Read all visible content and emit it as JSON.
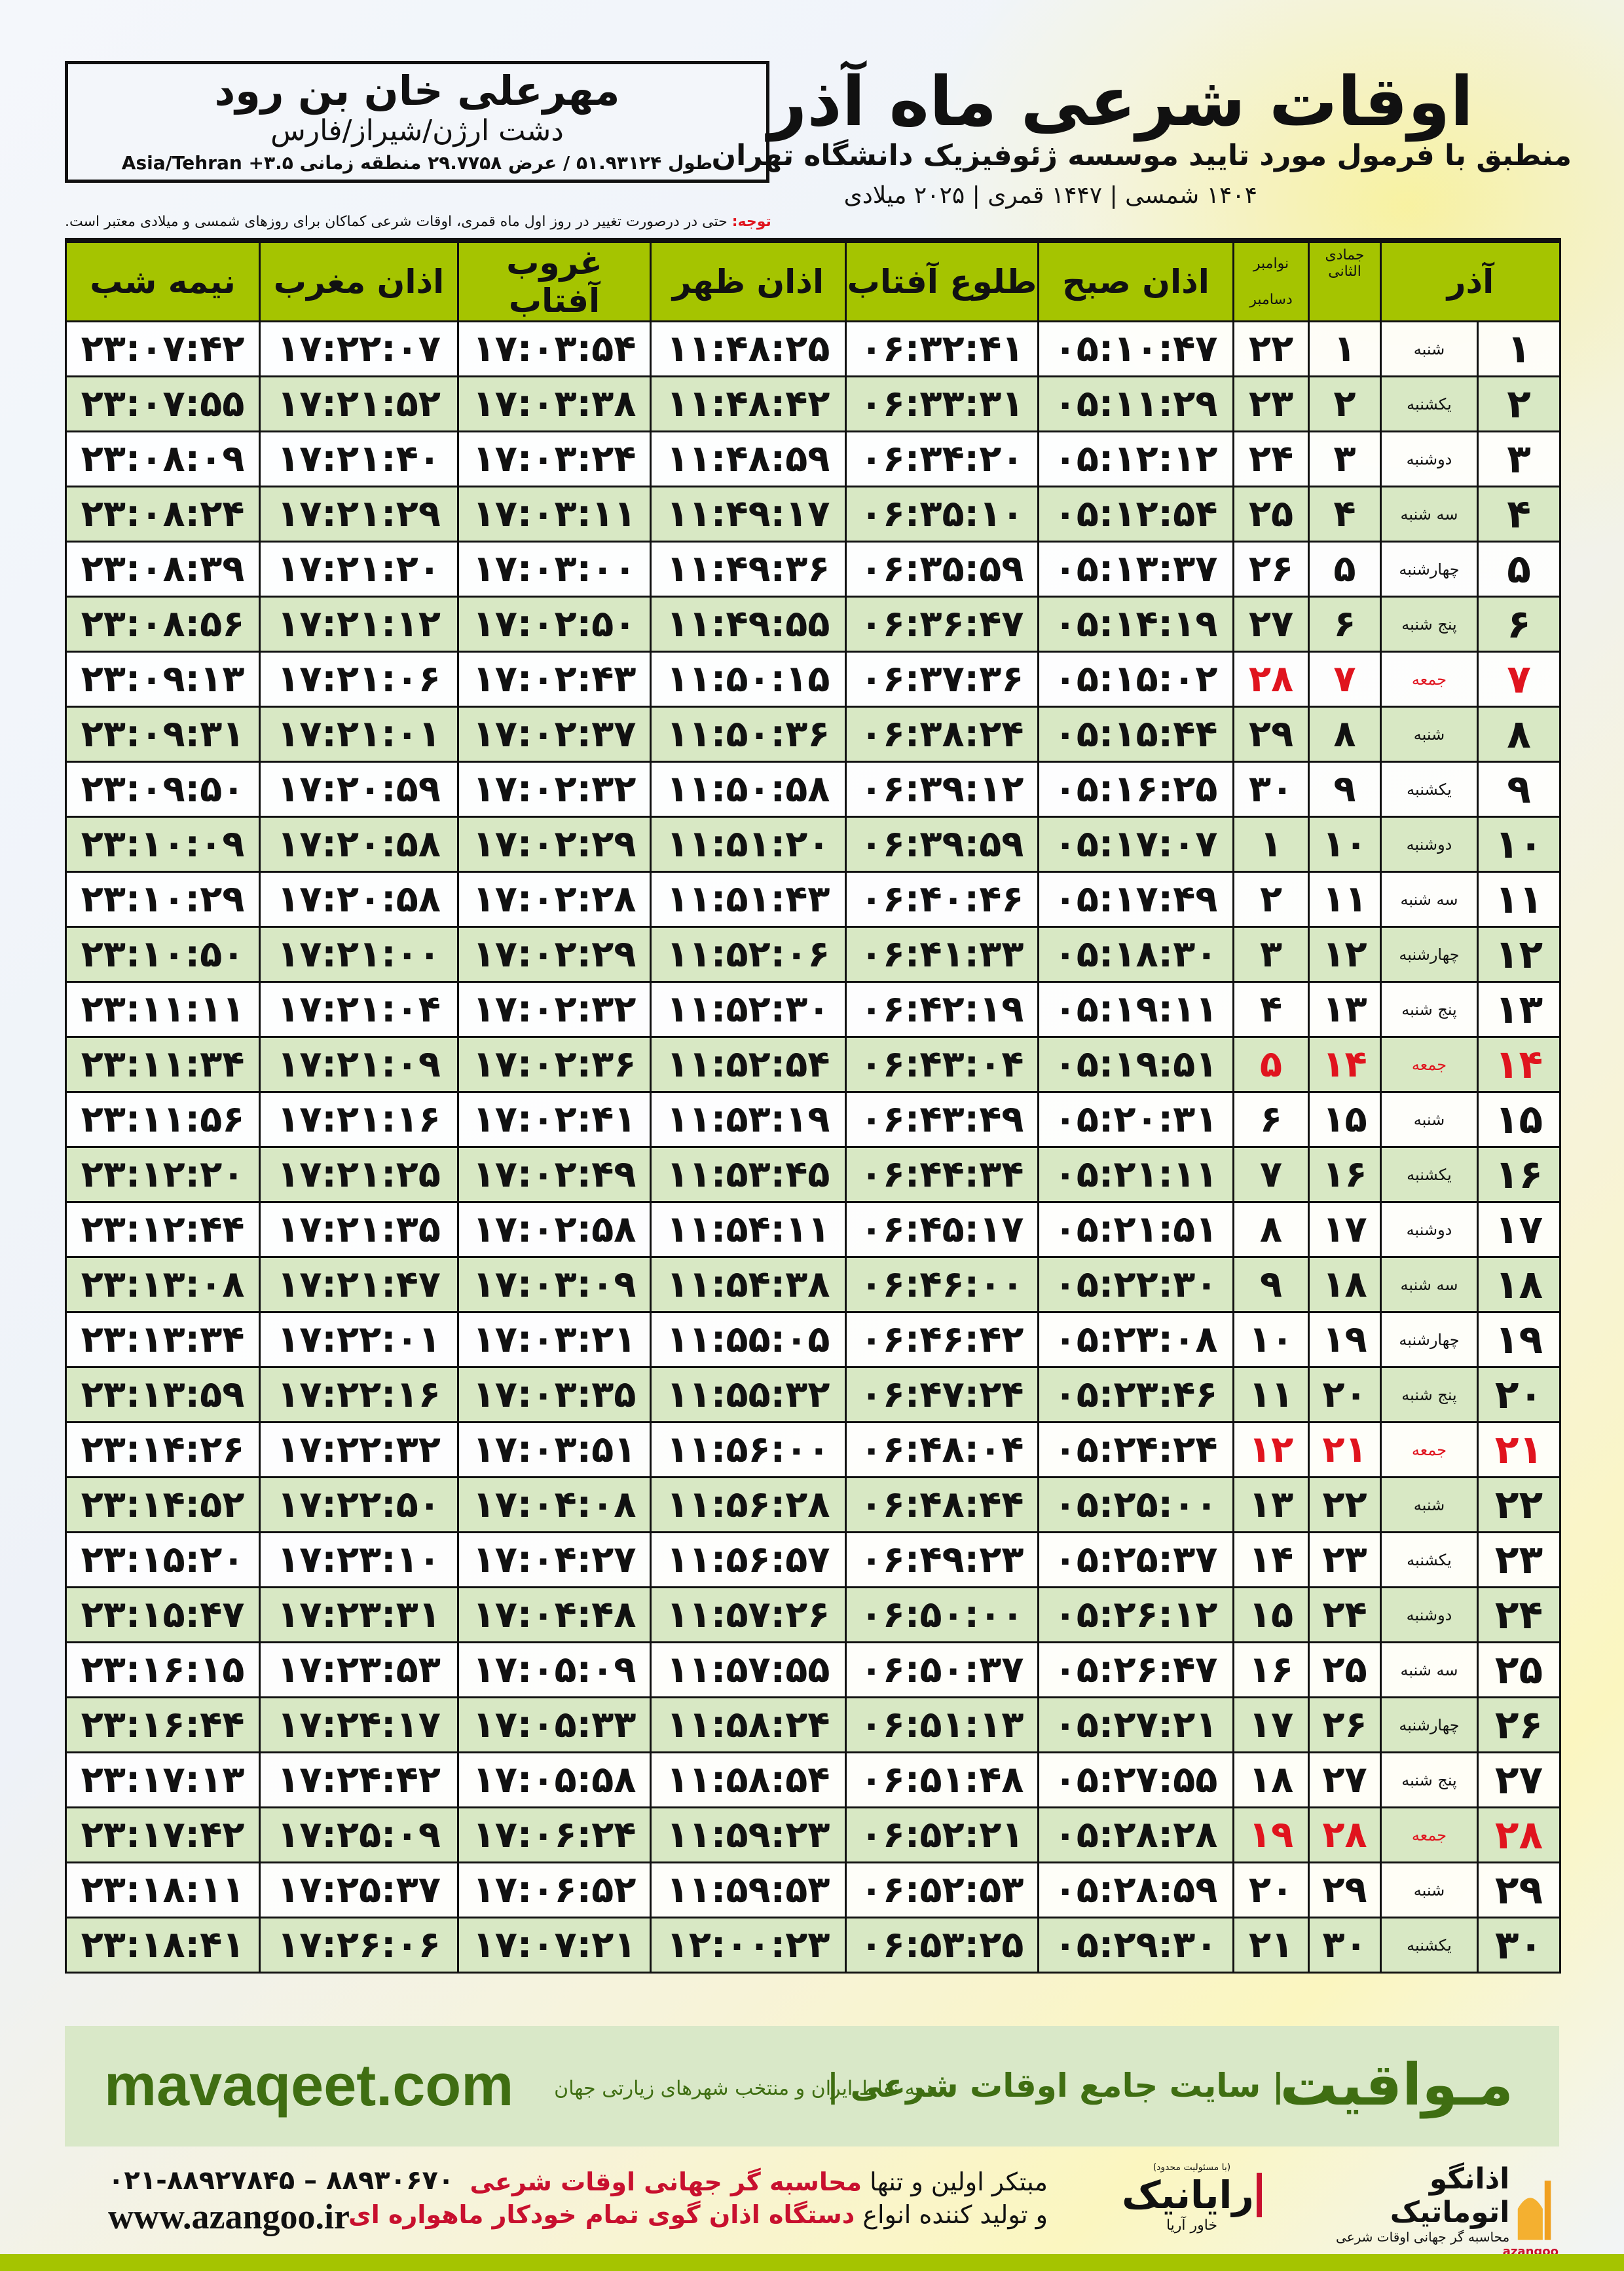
{
  "location": {
    "name": "مهرعلی خان بن رود",
    "region": "دشت ارژن/شیراز/فارس",
    "coords": "طول ۵۱.۹۳۱۲۴ / عرض ۲۹.۷۷۵۸ منطقه زمانی ۳.۵+ Asia/Tehran"
  },
  "header": {
    "title": "اوقات شرعی ماه آذر",
    "subtitle": "منطبق با فرمول مورد تایید موسسه ژئوفیزیک دانشگاه تهران",
    "dates": "۱۴۰۴ شمسی | ۱۴۴۷ قمری | ۲۰۲۵ میلادی"
  },
  "note": {
    "label": "توجه:",
    "text": " حتی در درصورت تغییر در روز اول ماه قمری، اوقات شرعی کماکان برای روزهای شمسی و میلادی معتبر است."
  },
  "colors": {
    "header_green": "#a5c400",
    "row_green": "#d8e8c4",
    "holiday_red": "#e0141e",
    "brand_green": "#3f6e12"
  },
  "table": {
    "columns": {
      "azar": "آذر",
      "qamari": "جمادی الثانی",
      "gregorian_top": "نوامبر",
      "gregorian_bottom": "دسامبر",
      "fajr": "اذان صبح",
      "sunrise": "طلوع آفتاب",
      "dhuhr": "اذان ظهر",
      "sunset": "غروب آفتاب",
      "maghrib": "اذان مغرب",
      "midnight": "نیمه شب"
    },
    "rows": [
      {
        "azar": "۱",
        "weekday": "شنبه",
        "qamari": "۱",
        "gregorian": "۲۲",
        "fajr": "۰۵:۱۰:۴۷",
        "sunrise": "۰۶:۳۲:۴۱",
        "dhuhr": "۱۱:۴۸:۲۵",
        "sunset": "۱۷:۰۳:۵۴",
        "maghrib": "۱۷:۲۲:۰۷",
        "midnight": "۲۳:۰۷:۴۲",
        "holiday": false
      },
      {
        "azar": "۲",
        "weekday": "یکشنبه",
        "qamari": "۲",
        "gregorian": "۲۳",
        "fajr": "۰۵:۱۱:۲۹",
        "sunrise": "۰۶:۳۳:۳۱",
        "dhuhr": "۱۱:۴۸:۴۲",
        "sunset": "۱۷:۰۳:۳۸",
        "maghrib": "۱۷:۲۱:۵۲",
        "midnight": "۲۳:۰۷:۵۵",
        "holiday": false
      },
      {
        "azar": "۳",
        "weekday": "دوشنبه",
        "qamari": "۳",
        "gregorian": "۲۴",
        "fajr": "۰۵:۱۲:۱۲",
        "sunrise": "۰۶:۳۴:۲۰",
        "dhuhr": "۱۱:۴۸:۵۹",
        "sunset": "۱۷:۰۳:۲۴",
        "maghrib": "۱۷:۲۱:۴۰",
        "midnight": "۲۳:۰۸:۰۹",
        "holiday": false
      },
      {
        "azar": "۴",
        "weekday": "سه شنبه",
        "qamari": "۴",
        "gregorian": "۲۵",
        "fajr": "۰۵:۱۲:۵۴",
        "sunrise": "۰۶:۳۵:۱۰",
        "dhuhr": "۱۱:۴۹:۱۷",
        "sunset": "۱۷:۰۳:۱۱",
        "maghrib": "۱۷:۲۱:۲۹",
        "midnight": "۲۳:۰۸:۲۴",
        "holiday": false
      },
      {
        "azar": "۵",
        "weekday": "چهارشنبه",
        "qamari": "۵",
        "gregorian": "۲۶",
        "fajr": "۰۵:۱۳:۳۷",
        "sunrise": "۰۶:۳۵:۵۹",
        "dhuhr": "۱۱:۴۹:۳۶",
        "sunset": "۱۷:۰۳:۰۰",
        "maghrib": "۱۷:۲۱:۲۰",
        "midnight": "۲۳:۰۸:۳۹",
        "holiday": false
      },
      {
        "azar": "۶",
        "weekday": "پنج شنبه",
        "qamari": "۶",
        "gregorian": "۲۷",
        "fajr": "۰۵:۱۴:۱۹",
        "sunrise": "۰۶:۳۶:۴۷",
        "dhuhr": "۱۱:۴۹:۵۵",
        "sunset": "۱۷:۰۲:۵۰",
        "maghrib": "۱۷:۲۱:۱۲",
        "midnight": "۲۳:۰۸:۵۶",
        "holiday": false
      },
      {
        "azar": "۷",
        "weekday": "جمعه",
        "qamari": "۷",
        "gregorian": "۲۸",
        "fajr": "۰۵:۱۵:۰۲",
        "sunrise": "۰۶:۳۷:۳۶",
        "dhuhr": "۱۱:۵۰:۱۵",
        "sunset": "۱۷:۰۲:۴۳",
        "maghrib": "۱۷:۲۱:۰۶",
        "midnight": "۲۳:۰۹:۱۳",
        "holiday": true
      },
      {
        "azar": "۸",
        "weekday": "شنبه",
        "qamari": "۸",
        "gregorian": "۲۹",
        "fajr": "۰۵:۱۵:۴۴",
        "sunrise": "۰۶:۳۸:۲۴",
        "dhuhr": "۱۱:۵۰:۳۶",
        "sunset": "۱۷:۰۲:۳۷",
        "maghrib": "۱۷:۲۱:۰۱",
        "midnight": "۲۳:۰۹:۳۱",
        "holiday": false
      },
      {
        "azar": "۹",
        "weekday": "یکشنبه",
        "qamari": "۹",
        "gregorian": "۳۰",
        "fajr": "۰۵:۱۶:۲۵",
        "sunrise": "۰۶:۳۹:۱۲",
        "dhuhr": "۱۱:۵۰:۵۸",
        "sunset": "۱۷:۰۲:۳۲",
        "maghrib": "۱۷:۲۰:۵۹",
        "midnight": "۲۳:۰۹:۵۰",
        "holiday": false
      },
      {
        "azar": "۱۰",
        "weekday": "دوشنبه",
        "qamari": "۱۰",
        "gregorian": "۱",
        "fajr": "۰۵:۱۷:۰۷",
        "sunrise": "۰۶:۳۹:۵۹",
        "dhuhr": "۱۱:۵۱:۲۰",
        "sunset": "۱۷:۰۲:۲۹",
        "maghrib": "۱۷:۲۰:۵۸",
        "midnight": "۲۳:۱۰:۰۹",
        "holiday": false
      },
      {
        "azar": "۱۱",
        "weekday": "سه شنبه",
        "qamari": "۱۱",
        "gregorian": "۲",
        "fajr": "۰۵:۱۷:۴۹",
        "sunrise": "۰۶:۴۰:۴۶",
        "dhuhr": "۱۱:۵۱:۴۳",
        "sunset": "۱۷:۰۲:۲۸",
        "maghrib": "۱۷:۲۰:۵۸",
        "midnight": "۲۳:۱۰:۲۹",
        "holiday": false
      },
      {
        "azar": "۱۲",
        "weekday": "چهارشنبه",
        "qamari": "۱۲",
        "gregorian": "۳",
        "fajr": "۰۵:۱۸:۳۰",
        "sunrise": "۰۶:۴۱:۳۳",
        "dhuhr": "۱۱:۵۲:۰۶",
        "sunset": "۱۷:۰۲:۲۹",
        "maghrib": "۱۷:۲۱:۰۰",
        "midnight": "۲۳:۱۰:۵۰",
        "holiday": false
      },
      {
        "azar": "۱۳",
        "weekday": "پنج شنبه",
        "qamari": "۱۳",
        "gregorian": "۴",
        "fajr": "۰۵:۱۹:۱۱",
        "sunrise": "۰۶:۴۲:۱۹",
        "dhuhr": "۱۱:۵۲:۳۰",
        "sunset": "۱۷:۰۲:۳۲",
        "maghrib": "۱۷:۲۱:۰۴",
        "midnight": "۲۳:۱۱:۱۱",
        "holiday": false
      },
      {
        "azar": "۱۴",
        "weekday": "جمعه",
        "qamari": "۱۴",
        "gregorian": "۵",
        "fajr": "۰۵:۱۹:۵۱",
        "sunrise": "۰۶:۴۳:۰۴",
        "dhuhr": "۱۱:۵۲:۵۴",
        "sunset": "۱۷:۰۲:۳۶",
        "maghrib": "۱۷:۲۱:۰۹",
        "midnight": "۲۳:۱۱:۳۴",
        "holiday": true
      },
      {
        "azar": "۱۵",
        "weekday": "شنبه",
        "qamari": "۱۵",
        "gregorian": "۶",
        "fajr": "۰۵:۲۰:۳۱",
        "sunrise": "۰۶:۴۳:۴۹",
        "dhuhr": "۱۱:۵۳:۱۹",
        "sunset": "۱۷:۰۲:۴۱",
        "maghrib": "۱۷:۲۱:۱۶",
        "midnight": "۲۳:۱۱:۵۶",
        "holiday": false
      },
      {
        "azar": "۱۶",
        "weekday": "یکشنبه",
        "qamari": "۱۶",
        "gregorian": "۷",
        "fajr": "۰۵:۲۱:۱۱",
        "sunrise": "۰۶:۴۴:۳۴",
        "dhuhr": "۱۱:۵۳:۴۵",
        "sunset": "۱۷:۰۲:۴۹",
        "maghrib": "۱۷:۲۱:۲۵",
        "midnight": "۲۳:۱۲:۲۰",
        "holiday": false
      },
      {
        "azar": "۱۷",
        "weekday": "دوشنبه",
        "qamari": "۱۷",
        "gregorian": "۸",
        "fajr": "۰۵:۲۱:۵۱",
        "sunrise": "۰۶:۴۵:۱۷",
        "dhuhr": "۱۱:۵۴:۱۱",
        "sunset": "۱۷:۰۲:۵۸",
        "maghrib": "۱۷:۲۱:۳۵",
        "midnight": "۲۳:۱۲:۴۴",
        "holiday": false
      },
      {
        "azar": "۱۸",
        "weekday": "سه شنبه",
        "qamari": "۱۸",
        "gregorian": "۹",
        "fajr": "۰۵:۲۲:۳۰",
        "sunrise": "۰۶:۴۶:۰۰",
        "dhuhr": "۱۱:۵۴:۳۸",
        "sunset": "۱۷:۰۳:۰۹",
        "maghrib": "۱۷:۲۱:۴۷",
        "midnight": "۲۳:۱۳:۰۸",
        "holiday": false
      },
      {
        "azar": "۱۹",
        "weekday": "چهارشنبه",
        "qamari": "۱۹",
        "gregorian": "۱۰",
        "fajr": "۰۵:۲۳:۰۸",
        "sunrise": "۰۶:۴۶:۴۲",
        "dhuhr": "۱۱:۵۵:۰۵",
        "sunset": "۱۷:۰۳:۲۱",
        "maghrib": "۱۷:۲۲:۰۱",
        "midnight": "۲۳:۱۳:۳۴",
        "holiday": false
      },
      {
        "azar": "۲۰",
        "weekday": "پنج شنبه",
        "qamari": "۲۰",
        "gregorian": "۱۱",
        "fajr": "۰۵:۲۳:۴۶",
        "sunrise": "۰۶:۴۷:۲۴",
        "dhuhr": "۱۱:۵۵:۳۲",
        "sunset": "۱۷:۰۳:۳۵",
        "maghrib": "۱۷:۲۲:۱۶",
        "midnight": "۲۳:۱۳:۵۹",
        "holiday": false
      },
      {
        "azar": "۲۱",
        "weekday": "جمعه",
        "qamari": "۲۱",
        "gregorian": "۱۲",
        "fajr": "۰۵:۲۴:۲۴",
        "sunrise": "۰۶:۴۸:۰۴",
        "dhuhr": "۱۱:۵۶:۰۰",
        "sunset": "۱۷:۰۳:۵۱",
        "maghrib": "۱۷:۲۲:۳۲",
        "midnight": "۲۳:۱۴:۲۶",
        "holiday": true
      },
      {
        "azar": "۲۲",
        "weekday": "شنبه",
        "qamari": "۲۲",
        "gregorian": "۱۳",
        "fajr": "۰۵:۲۵:۰۰",
        "sunrise": "۰۶:۴۸:۴۴",
        "dhuhr": "۱۱:۵۶:۲۸",
        "sunset": "۱۷:۰۴:۰۸",
        "maghrib": "۱۷:۲۲:۵۰",
        "midnight": "۲۳:۱۴:۵۲",
        "holiday": false
      },
      {
        "azar": "۲۳",
        "weekday": "یکشنبه",
        "qamari": "۲۳",
        "gregorian": "۱۴",
        "fajr": "۰۵:۲۵:۳۷",
        "sunrise": "۰۶:۴۹:۲۳",
        "dhuhr": "۱۱:۵۶:۵۷",
        "sunset": "۱۷:۰۴:۲۷",
        "maghrib": "۱۷:۲۳:۱۰",
        "midnight": "۲۳:۱۵:۲۰",
        "holiday": false
      },
      {
        "azar": "۲۴",
        "weekday": "دوشنبه",
        "qamari": "۲۴",
        "gregorian": "۱۵",
        "fajr": "۰۵:۲۶:۱۲",
        "sunrise": "۰۶:۵۰:۰۰",
        "dhuhr": "۱۱:۵۷:۲۶",
        "sunset": "۱۷:۰۴:۴۸",
        "maghrib": "۱۷:۲۳:۳۱",
        "midnight": "۲۳:۱۵:۴۷",
        "holiday": false
      },
      {
        "azar": "۲۵",
        "weekday": "سه شنبه",
        "qamari": "۲۵",
        "gregorian": "۱۶",
        "fajr": "۰۵:۲۶:۴۷",
        "sunrise": "۰۶:۵۰:۳۷",
        "dhuhr": "۱۱:۵۷:۵۵",
        "sunset": "۱۷:۰۵:۰۹",
        "maghrib": "۱۷:۲۳:۵۳",
        "midnight": "۲۳:۱۶:۱۵",
        "holiday": false
      },
      {
        "azar": "۲۶",
        "weekday": "چهارشنبه",
        "qamari": "۲۶",
        "gregorian": "۱۷",
        "fajr": "۰۵:۲۷:۲۱",
        "sunrise": "۰۶:۵۱:۱۳",
        "dhuhr": "۱۱:۵۸:۲۴",
        "sunset": "۱۷:۰۵:۳۳",
        "maghrib": "۱۷:۲۴:۱۷",
        "midnight": "۲۳:۱۶:۴۴",
        "holiday": false
      },
      {
        "azar": "۲۷",
        "weekday": "پنج شنبه",
        "qamari": "۲۷",
        "gregorian": "۱۸",
        "fajr": "۰۵:۲۷:۵۵",
        "sunrise": "۰۶:۵۱:۴۸",
        "dhuhr": "۱۱:۵۸:۵۴",
        "sunset": "۱۷:۰۵:۵۸",
        "maghrib": "۱۷:۲۴:۴۲",
        "midnight": "۲۳:۱۷:۱۳",
        "holiday": false
      },
      {
        "azar": "۲۸",
        "weekday": "جمعه",
        "qamari": "۲۸",
        "gregorian": "۱۹",
        "fajr": "۰۵:۲۸:۲۸",
        "sunrise": "۰۶:۵۲:۲۱",
        "dhuhr": "۱۱:۵۹:۲۳",
        "sunset": "۱۷:۰۶:۲۴",
        "maghrib": "۱۷:۲۵:۰۹",
        "midnight": "۲۳:۱۷:۴۲",
        "holiday": true
      },
      {
        "azar": "۲۹",
        "weekday": "شنبه",
        "qamari": "۲۹",
        "gregorian": "۲۰",
        "fajr": "۰۵:۲۸:۵۹",
        "sunrise": "۰۶:۵۲:۵۳",
        "dhuhr": "۱۱:۵۹:۵۳",
        "sunset": "۱۷:۰۶:۵۲",
        "maghrib": "۱۷:۲۵:۳۷",
        "midnight": "۲۳:۱۸:۱۱",
        "holiday": false
      },
      {
        "azar": "۳۰",
        "weekday": "یکشنبه",
        "qamari": "۳۰",
        "gregorian": "۲۱",
        "fajr": "۰۵:۲۹:۳۰",
        "sunrise": "۰۶:۵۳:۲۵",
        "dhuhr": "۱۲:۰۰:۲۳",
        "sunset": "۱۷:۰۷:۲۱",
        "maghrib": "۱۷:۲۶:۰۶",
        "midnight": "۲۳:۱۸:۴۱",
        "holiday": false
      }
    ]
  },
  "footer": {
    "brand": "مـواقیت",
    "tagline": "| سایت جامع اوقات شرعی |",
    "tagsub": "همه نقاط ایران و منتخب شهرهای زیارتی جهان",
    "url": "mavaqeet.com",
    "phone": "۰۲۱-۸۸۹۲۷۸۴۵ – ۸۸۹۳۰۶۷۰",
    "website": "www.azangoo.ir",
    "promo_line1_a": "مبتکر اولین و تنها ",
    "promo_line1_b": "محاسبه گر جهانی اوقات شرعی",
    "promo_line2_a": "و تولید کننده انواع ",
    "promo_line2_b": "دستگاه اذان گوی تمام خودکار ماهواره ای",
    "logo_rayanik": "رایانیک",
    "logo_rayanik_sub": "خاور آریا",
    "logo_rayanik_note": "(با مسئولیت محدود)",
    "logo_azangoo": "اذانگو اتوماتیک",
    "logo_azangoo_sub": "محاسبه گر جهانی اوقات شرعی",
    "logo_azangoo_latin": "azangoo"
  }
}
